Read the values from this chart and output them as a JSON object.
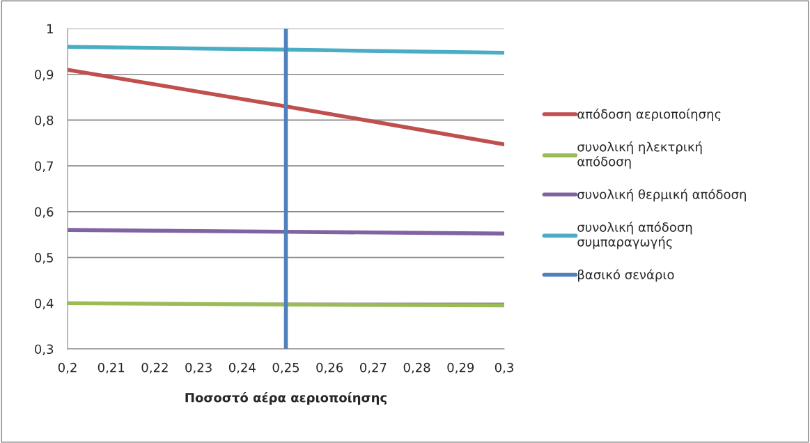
{
  "chart_data": {
    "type": "line",
    "xlabel": "Ποσοστό αέρα αεριοποίησης",
    "x": [
      0.2,
      0.25,
      0.3
    ],
    "series": [
      {
        "name": "απόδοση αεριοποίησης",
        "color": "#c0504d",
        "values": [
          0.91,
          0.83,
          0.747
        ]
      },
      {
        "name": "συνολική ηλεκτρική\nαπόδοση",
        "color": "#9bbb59",
        "values": [
          0.4,
          0.397,
          0.395
        ]
      },
      {
        "name": "συνολική θερμική απόδοση",
        "color": "#8064a2",
        "values": [
          0.56,
          0.556,
          0.552
        ]
      },
      {
        "name": "συνολική απόδοση\nσυμπαραγωγής",
        "color": "#4bacc6",
        "values": [
          0.96,
          0.954,
          0.947
        ]
      },
      {
        "name": "βασικό σενάριο",
        "color": "#4f81bd",
        "x": [
          0.25,
          0.25
        ],
        "values": [
          0.3,
          1
        ]
      }
    ],
    "xlim": [
      0.2,
      0.3
    ],
    "xticks": [
      {
        "value": 0.2,
        "label": "0,2"
      },
      {
        "value": 0.21,
        "label": "0,21"
      },
      {
        "value": 0.22,
        "label": "0,22"
      },
      {
        "value": 0.23,
        "label": "0,23"
      },
      {
        "value": 0.24,
        "label": "0,24"
      },
      {
        "value": 0.25,
        "label": "0,25"
      },
      {
        "value": 0.26,
        "label": "0,26"
      },
      {
        "value": 0.27,
        "label": "0,27"
      },
      {
        "value": 0.28,
        "label": "0,28"
      },
      {
        "value": 0.29,
        "label": "0,29"
      },
      {
        "value": 0.3,
        "label": "0,3"
      }
    ],
    "ylim": [
      0.3,
      1
    ],
    "yticks": [
      {
        "value": 0.3,
        "label": "0,3"
      },
      {
        "value": 0.4,
        "label": "0,4"
      },
      {
        "value": 0.5,
        "label": "0,5"
      },
      {
        "value": 0.6,
        "label": "0,6"
      },
      {
        "value": 0.7,
        "label": "0,7"
      },
      {
        "value": 0.8,
        "label": "0,8"
      },
      {
        "value": 0.9,
        "label": "0,9"
      },
      1
    ],
    "grid": "y",
    "legend": "right"
  }
}
